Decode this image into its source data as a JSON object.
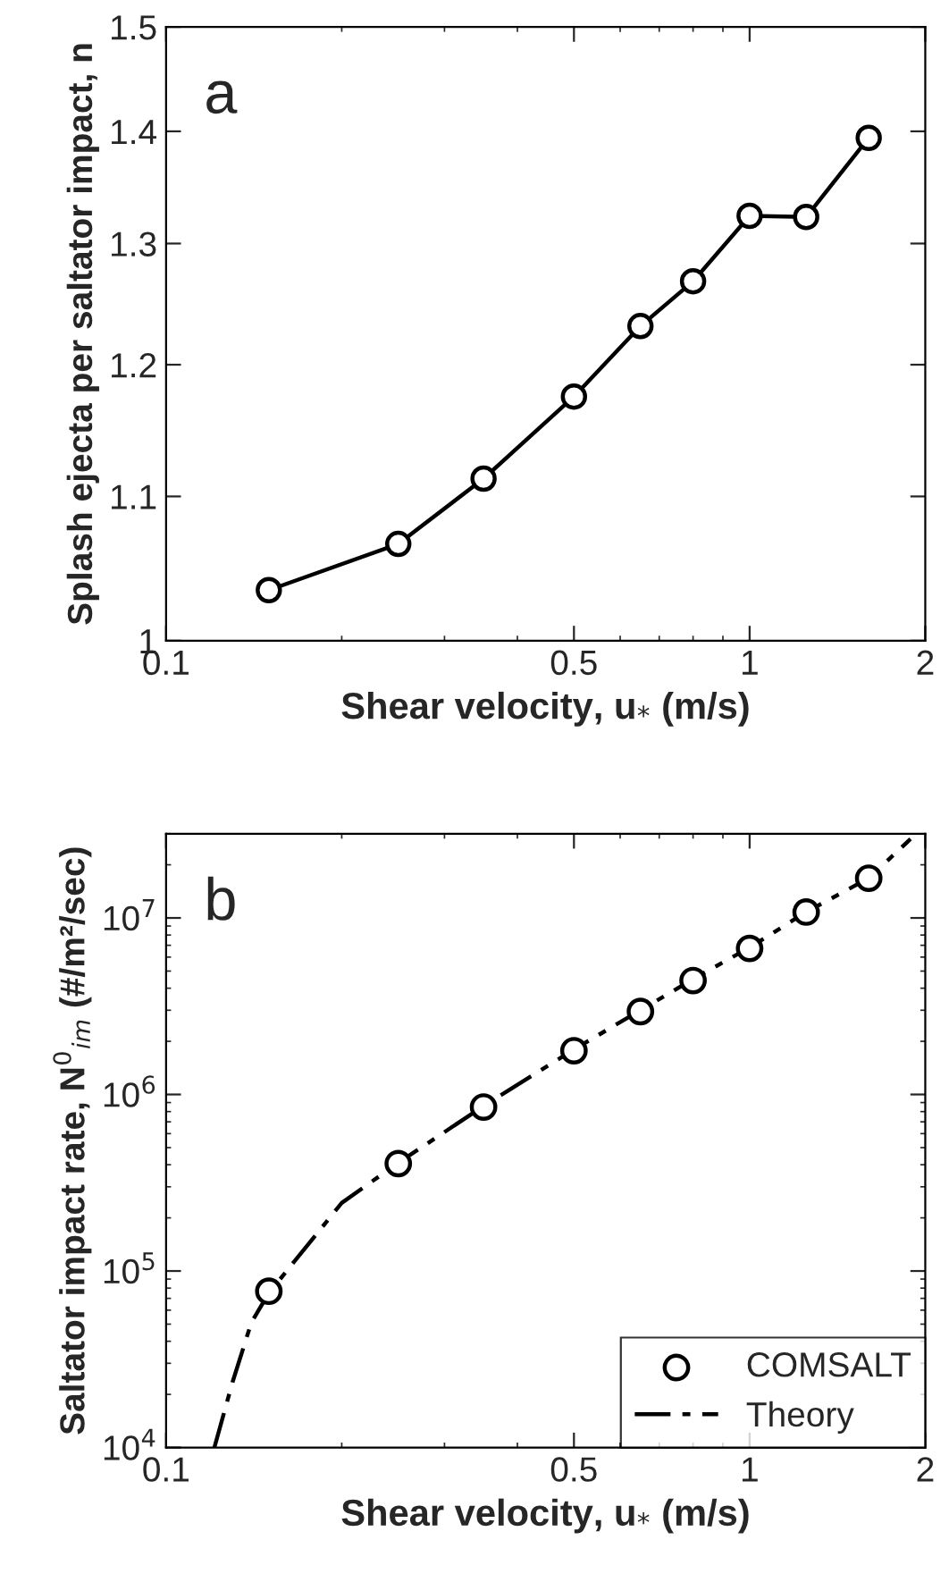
{
  "chart_data": [
    {
      "type": "line",
      "xlabel": "Shear velocity, u$_{*}$ (m/s)",
      "ylabel": "Splash ejecta per saltator impact, n",
      "annotations": [
        "a"
      ],
      "log": "xy",
      "xlim": [
        0.1,
        2
      ],
      "xticks": [
        0.1,
        0.5,
        1,
        2
      ],
      "ylim": [
        1,
        1.5
      ],
      "yticks": [
        1,
        1.1,
        1.2,
        1.3,
        1.4,
        1.5
      ],
      "marker": "circle",
      "line_style": "solid",
      "grid": false,
      "legend": false,
      "series": [
        {
          "color": "#000000",
          "x": [
            0.15,
            0.25,
            0.35,
            0.5,
            0.65,
            0.8,
            1.0,
            1.25,
            1.6
          ],
          "values": [
            1.034,
            1.066,
            1.113,
            1.175,
            1.231,
            1.268,
            1.324,
            1.323,
            1.394
          ]
        }
      ]
    },
    {
      "type": "line",
      "xlabel": "Shear velocity, u$_{*}$ (m/s)",
      "ylabel": "Saltator impact rate, N$^{0}$$_{im}$ (#/m²/sec)",
      "annotations": [
        "b"
      ],
      "log": "xy",
      "xlim": [
        0.1,
        2
      ],
      "xticks": [
        0.1,
        0.5,
        1,
        2
      ],
      "ylim": [
        10000,
        30000000
      ],
      "yticks": [
        {
          "value": 10000,
          "label": "10$^{4}$"
        },
        {
          "value": 100000,
          "label": "10$^{5}$"
        },
        {
          "value": 1000000,
          "label": "10$^{6}$"
        },
        {
          "value": 10000000,
          "label": "10$^{7}$"
        }
      ],
      "grid": false,
      "legend": "bottom right",
      "series": [
        {
          "name": "COMSALT",
          "type": "scatter",
          "marker": "circle",
          "color": "#000000",
          "x": [
            0.15,
            0.25,
            0.35,
            0.5,
            0.65,
            0.8,
            1.0,
            1.25,
            1.6
          ],
          "values": [
            76800,
            406000,
            849000,
            1770000,
            2950000,
            4420000,
            6720000,
            10800000,
            16800000
          ]
        },
        {
          "name": "Theory",
          "type": "line",
          "marker": "none",
          "line_style": "dashdot",
          "color": "#000000",
          "x": [
            0.121,
            0.13,
            0.14,
            0.15,
            0.2,
            0.25,
            0.35,
            0.5,
            0.65,
            0.8,
            1.0,
            1.25,
            1.6,
            1.887
          ],
          "values": [
            10000,
            23500,
            51000,
            75000,
            243000,
            410000,
            860000,
            1800000,
            3000000,
            4500000,
            6800000,
            10800000,
            16800000,
            28000000
          ]
        }
      ]
    }
  ]
}
